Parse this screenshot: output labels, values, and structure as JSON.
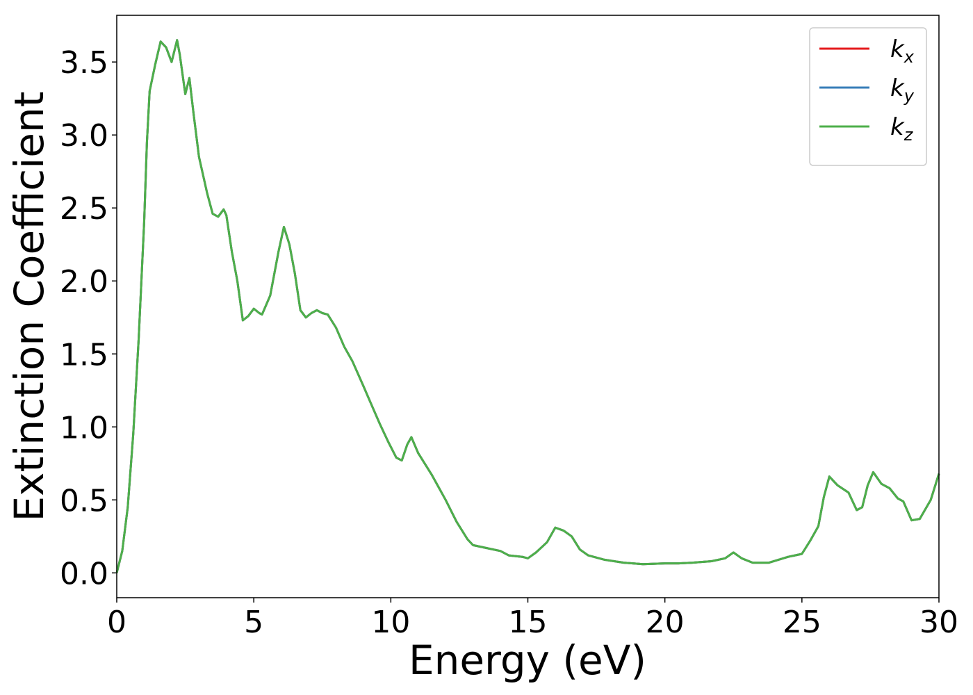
{
  "chart_data": {
    "type": "line",
    "x_label": "Energy (eV)",
    "y_label": "Extinction Coefficient",
    "xlim": [
      0,
      30
    ],
    "ylim": [
      -0.17,
      3.82
    ],
    "xticks": [
      0,
      5,
      10,
      15,
      20,
      25,
      30
    ],
    "yticks": [
      {
        "value": 0,
        "label": "0.0"
      },
      0.5,
      {
        "value": 1,
        "label": "1.0"
      },
      1.5,
      {
        "value": 2,
        "label": "2.0"
      },
      2.5,
      {
        "value": 3,
        "label": "3.0"
      },
      3.5
    ],
    "legend": "upper right",
    "x": [
      0,
      0.2,
      0.4,
      0.6,
      0.8,
      1.0,
      1.1,
      1.2,
      1.4,
      1.6,
      1.8,
      2.0,
      2.2,
      2.3,
      2.5,
      2.65,
      2.8,
      3.0,
      3.3,
      3.5,
      3.7,
      3.9,
      4.0,
      4.2,
      4.4,
      4.6,
      4.8,
      5.0,
      5.2,
      5.3,
      5.6,
      5.9,
      6.1,
      6.3,
      6.5,
      6.7,
      6.9,
      7.1,
      7.3,
      7.5,
      7.7,
      8.0,
      8.3,
      8.6,
      9.0,
      9.3,
      9.6,
      9.9,
      10.2,
      10.4,
      10.6,
      10.75,
      11.0,
      11.5,
      12.0,
      12.4,
      12.8,
      13.0,
      13.5,
      14.0,
      14.3,
      14.8,
      15.0,
      15.3,
      15.7,
      16.0,
      16.3,
      16.6,
      16.9,
      17.2,
      17.8,
      18.5,
      19.2,
      20.0,
      20.5,
      21.0,
      21.7,
      22.2,
      22.5,
      22.8,
      23.2,
      23.8,
      24.5,
      25.0,
      25.3,
      25.6,
      25.8,
      26.0,
      26.3,
      26.7,
      27.0,
      27.2,
      27.4,
      27.6,
      27.9,
      28.2,
      28.5,
      28.7,
      29.0,
      29.3,
      29.7,
      30.0
    ],
    "series": [
      {
        "name": "kx",
        "color": "#e41a1c",
        "values": [
          0,
          0.15,
          0.45,
          0.95,
          1.6,
          2.4,
          2.95,
          3.3,
          3.48,
          3.64,
          3.6,
          3.5,
          3.65,
          3.55,
          3.28,
          3.39,
          3.15,
          2.85,
          2.6,
          2.46,
          2.44,
          2.49,
          2.45,
          2.2,
          2.0,
          1.73,
          1.76,
          1.81,
          1.78,
          1.77,
          1.9,
          2.2,
          2.37,
          2.25,
          2.05,
          1.8,
          1.75,
          1.78,
          1.8,
          1.78,
          1.77,
          1.68,
          1.55,
          1.45,
          1.28,
          1.15,
          1.02,
          0.9,
          0.79,
          0.77,
          0.88,
          0.93,
          0.82,
          0.67,
          0.5,
          0.35,
          0.23,
          0.19,
          0.17,
          0.15,
          0.12,
          0.11,
          0.1,
          0.14,
          0.21,
          0.31,
          0.29,
          0.25,
          0.16,
          0.12,
          0.09,
          0.07,
          0.06,
          0.065,
          0.065,
          0.07,
          0.08,
          0.1,
          0.14,
          0.1,
          0.07,
          0.07,
          0.11,
          0.13,
          0.22,
          0.32,
          0.52,
          0.66,
          0.6,
          0.55,
          0.43,
          0.45,
          0.6,
          0.69,
          0.61,
          0.58,
          0.51,
          0.49,
          0.36,
          0.37,
          0.5,
          0.68
        ]
      },
      {
        "name": "ky",
        "color": "#377eb8",
        "values": [
          0,
          0.15,
          0.45,
          0.95,
          1.6,
          2.4,
          2.95,
          3.3,
          3.48,
          3.64,
          3.6,
          3.5,
          3.65,
          3.55,
          3.28,
          3.39,
          3.15,
          2.85,
          2.6,
          2.46,
          2.44,
          2.49,
          2.45,
          2.2,
          2.0,
          1.73,
          1.76,
          1.81,
          1.78,
          1.77,
          1.9,
          2.2,
          2.37,
          2.25,
          2.05,
          1.8,
          1.75,
          1.78,
          1.8,
          1.78,
          1.77,
          1.68,
          1.55,
          1.45,
          1.28,
          1.15,
          1.02,
          0.9,
          0.79,
          0.77,
          0.88,
          0.93,
          0.82,
          0.67,
          0.5,
          0.35,
          0.23,
          0.19,
          0.17,
          0.15,
          0.12,
          0.11,
          0.1,
          0.14,
          0.21,
          0.31,
          0.29,
          0.25,
          0.16,
          0.12,
          0.09,
          0.07,
          0.06,
          0.065,
          0.065,
          0.07,
          0.08,
          0.1,
          0.14,
          0.1,
          0.07,
          0.07,
          0.11,
          0.13,
          0.22,
          0.32,
          0.52,
          0.66,
          0.6,
          0.55,
          0.43,
          0.45,
          0.6,
          0.69,
          0.61,
          0.58,
          0.51,
          0.49,
          0.36,
          0.37,
          0.5,
          0.68
        ]
      },
      {
        "name": "kz",
        "color": "#4daf4a",
        "values": [
          0,
          0.15,
          0.45,
          0.95,
          1.6,
          2.4,
          2.95,
          3.3,
          3.48,
          3.64,
          3.6,
          3.5,
          3.65,
          3.55,
          3.28,
          3.39,
          3.15,
          2.85,
          2.6,
          2.46,
          2.44,
          2.49,
          2.45,
          2.2,
          2.0,
          1.73,
          1.76,
          1.81,
          1.78,
          1.77,
          1.9,
          2.2,
          2.37,
          2.25,
          2.05,
          1.8,
          1.75,
          1.78,
          1.8,
          1.78,
          1.77,
          1.68,
          1.55,
          1.45,
          1.28,
          1.15,
          1.02,
          0.9,
          0.79,
          0.77,
          0.88,
          0.93,
          0.82,
          0.67,
          0.5,
          0.35,
          0.23,
          0.19,
          0.17,
          0.15,
          0.12,
          0.11,
          0.1,
          0.14,
          0.21,
          0.31,
          0.29,
          0.25,
          0.16,
          0.12,
          0.09,
          0.07,
          0.06,
          0.065,
          0.065,
          0.07,
          0.08,
          0.1,
          0.14,
          0.1,
          0.07,
          0.07,
          0.11,
          0.13,
          0.22,
          0.32,
          0.52,
          0.66,
          0.6,
          0.55,
          0.43,
          0.45,
          0.6,
          0.69,
          0.61,
          0.58,
          0.51,
          0.49,
          0.36,
          0.37,
          0.5,
          0.68
        ]
      }
    ]
  }
}
